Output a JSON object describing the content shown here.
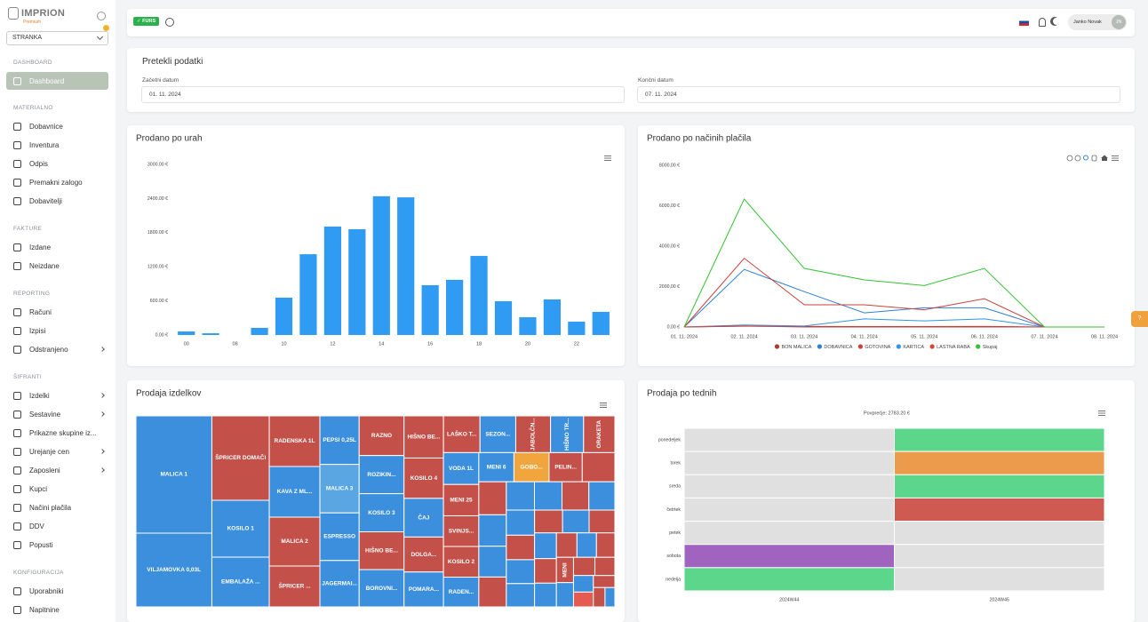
{
  "sidebar": {
    "brand": "IMPRION",
    "brand_tier": "Premium",
    "select": "STRANKA",
    "sections": [
      {
        "title": "DASHBOARD",
        "items": [
          {
            "label": "Dashboard",
            "active": true
          }
        ]
      },
      {
        "title": "MATERIALNO",
        "items": [
          {
            "label": "Dobavnice"
          },
          {
            "label": "Inventura"
          },
          {
            "label": "Odpis"
          },
          {
            "label": "Premakni zalogo"
          },
          {
            "label": "Dobavitelji"
          }
        ]
      },
      {
        "title": "FAKTURE",
        "items": [
          {
            "label": "Izdane"
          },
          {
            "label": "Neizdane"
          }
        ]
      },
      {
        "title": "REPORTING",
        "items": [
          {
            "label": "Računi"
          },
          {
            "label": "Izpisi"
          },
          {
            "label": "Odstranjeno",
            "expandable": true
          }
        ]
      },
      {
        "title": "ŠIFRANTI",
        "items": [
          {
            "label": "Izdelki",
            "expandable": true
          },
          {
            "label": "Sestavine",
            "expandable": true
          },
          {
            "label": "Prikazne skupine iz..."
          },
          {
            "label": "Urejanje cen",
            "expandable": true
          },
          {
            "label": "Zaposleni",
            "expandable": true
          },
          {
            "label": "Kupci"
          },
          {
            "label": "Načini plačila"
          },
          {
            "label": "DDV"
          },
          {
            "label": "Popusti"
          }
        ]
      },
      {
        "title": "KONFIGURACIJA",
        "items": [
          {
            "label": "Uporabniki"
          },
          {
            "label": "Napitnine"
          }
        ]
      }
    ]
  },
  "topbar": {
    "badge": "FURS",
    "user": "Janko Novak",
    "initials": "JN"
  },
  "help": "?",
  "filter": {
    "title": "Pretekli podatki",
    "fields": [
      {
        "label": "Začetni datum",
        "value": "01. 11. 2024"
      },
      {
        "label": "Končni datum",
        "value": "07. 11. 2024"
      }
    ]
  },
  "chart_data": [
    {
      "type": "bar",
      "title": "Prodano po urah",
      "color": "#2f9bf2",
      "grid": false,
      "categories": [
        "00",
        null,
        "08",
        null,
        "10",
        null,
        "12",
        null,
        "14",
        null,
        "16",
        null,
        "18",
        null,
        "20",
        null,
        "22",
        null
      ],
      "values": [
        62,
        30,
        0,
        125,
        656,
        1420,
        1906,
        1860,
        2440,
        2420,
        875,
        970,
        1390,
        594,
        312,
        625,
        234,
        406
      ],
      "ylim": [
        0,
        3000
      ],
      "yticks": [
        {
          "value": 0,
          "label": "0.00 €"
        },
        {
          "value": 600,
          "label": "600.00 €"
        },
        {
          "value": 1200,
          "label": "1200.00 €"
        },
        {
          "value": 1800,
          "label": "1800.00 €"
        },
        {
          "value": 2400,
          "label": "2400.00 €"
        },
        {
          "value": 3000,
          "label": "3000.00 €"
        }
      ]
    },
    {
      "type": "line",
      "title": "Prodano po načinih plačila",
      "grid": false,
      "categories": [
        "01. 11. 2024",
        "02. 11. 2024",
        "03. 11. 2024",
        "04. 11. 2024",
        "05. 11. 2024",
        "06. 11. 2024",
        "07. 11. 2024",
        "08. 11. 2024"
      ],
      "ylim": [
        0,
        8000
      ],
      "yticks": [
        {
          "value": 0,
          "label": "0,00 €"
        },
        {
          "value": 2000,
          "label": "2000,00 €"
        },
        {
          "value": 4000,
          "label": "4000,00 €"
        },
        {
          "value": 6000,
          "label": "6000,00 €"
        },
        {
          "value": 8000,
          "label": "8000,00 €"
        }
      ],
      "series": [
        {
          "name": "BON MALICA",
          "color": "#b5382d",
          "values": [
            0,
            40,
            30,
            20,
            20,
            30,
            0,
            0
          ]
        },
        {
          "name": "DOBAVNICA",
          "color": "#2e7fd6",
          "values": [
            0,
            2850,
            1750,
            700,
            950,
            950,
            0,
            0
          ]
        },
        {
          "name": "GOTOVINA",
          "color": "#c9413a",
          "values": [
            0,
            3400,
            1100,
            1100,
            850,
            1400,
            0,
            0
          ]
        },
        {
          "name": "KARTICA",
          "color": "#2f95ea",
          "values": [
            0,
            100,
            50,
            400,
            300,
            400,
            0,
            0
          ]
        },
        {
          "name": "LASTNA RABA",
          "color": "#d4463c",
          "values": [
            0,
            50,
            0,
            0,
            0,
            0,
            0,
            0
          ]
        },
        {
          "name": "Skupaj",
          "color": "#33c233",
          "values": [
            0,
            6330,
            2900,
            2330,
            2050,
            2900,
            0,
            0
          ]
        }
      ]
    },
    {
      "type": "treemap",
      "title": "Prodaja izdelkov",
      "items": [
        {
          "label": "MALICA 1",
          "value": 10296,
          "color": "#3b8fdc"
        },
        {
          "label": "VILJAMOVKA 0,03L",
          "value": 6474,
          "color": "#3b8fdc"
        },
        {
          "label": "ŠPRICER DOMAČI",
          "value": 5605,
          "color": "#c4504a"
        },
        {
          "label": "KOSILO 1",
          "value": 3776,
          "color": "#3b8fdc"
        },
        {
          "label": "EMBALAŽA ...",
          "value": 3304,
          "color": "#3b8fdc"
        },
        {
          "label": "RADENSKA 1L",
          "value": 2964,
          "color": "#c4504a"
        },
        {
          "label": "KAVA Z ML...",
          "value": 2964,
          "color": "#3b8fdc"
        },
        {
          "label": "MALICA 2",
          "value": 2860,
          "color": "#c4504a"
        },
        {
          "label": "ŠPRICER ...",
          "value": 2392,
          "color": "#c4504a"
        },
        {
          "label": "PEPSI 0,25L",
          "value": 2205,
          "color": "#3b8fdc"
        },
        {
          "label": "MALICA 3",
          "value": 2205,
          "color": "#5aa6e3"
        },
        {
          "label": "ESPRESSO",
          "value": 2162,
          "color": "#3b8fdc"
        },
        {
          "label": "JAGERMAI...",
          "value": 2107,
          "color": "#3b8fdc"
        },
        {
          "label": "RAZNO",
          "value": 2058,
          "color": "#c4504a"
        },
        {
          "label": "ROZIKIN...",
          "value": 1978,
          "color": "#3b8fdc"
        },
        {
          "label": "KOSILO 3",
          "value": 1978,
          "color": "#3b8fdc"
        },
        {
          "label": "HIŠNO BE...",
          "value": 1960,
          "color": "#c4504a"
        },
        {
          "label": "BOROVNI...",
          "value": 1932,
          "color": "#3b8fdc"
        },
        {
          "label": "HIŠNO BE...",
          "value": 1924,
          "color": "#c4504a"
        },
        {
          "label": "KOSILO 4",
          "value": 1840,
          "color": "#c4504a"
        },
        {
          "label": "ČAJ",
          "value": 1764,
          "color": "#3b8fdc"
        },
        {
          "label": "DOLGA...",
          "value": 1596,
          "color": "#c4504a"
        },
        {
          "label": "POMARA...",
          "value": 1591,
          "color": "#3b8fdc"
        },
        {
          "label": "LAŠKO T...",
          "value": 1554,
          "color": "#c4504a"
        },
        {
          "label": "SEZON...",
          "value": 1520,
          "color": "#3b8fdc"
        },
        {
          "label": "JABOLČN...",
          "value": 1480,
          "color": "#c4504a"
        },
        {
          "label": "HIŠNO TR...",
          "value": 1406,
          "color": "#3b8fdc"
        },
        {
          "label": "ORAKETA",
          "value": 1330,
          "color": "#c4504a"
        },
        {
          "label": "VODA 1L",
          "value": 1302,
          "color": "#3b8fdc"
        },
        {
          "label": "MENI 25",
          "value": 1280,
          "color": "#c4504a"
        },
        {
          "label": "SVINJS...",
          "value": 1254,
          "color": "#c4504a"
        },
        {
          "label": "KOSILO 2",
          "value": 1254,
          "color": "#c4504a"
        },
        {
          "label": "RADEN...",
          "value": 1216,
          "color": "#3b8fdc"
        },
        {
          "label": "MENI 6",
          "value": 1184,
          "color": "#3b8fdc"
        },
        {
          "label": "GOBO...",
          "value": 1184,
          "color": "#f0a63c"
        },
        {
          "label": "PELIN...",
          "value": 1120,
          "color": "#c4504a"
        },
        {
          "label": null,
          "value": 1100,
          "color": "#c4504a"
        },
        {
          "label": null,
          "value": 1050,
          "color": "#c4504a"
        },
        {
          "label": null,
          "value": 1000,
          "color": "#3b8fdc"
        },
        {
          "label": null,
          "value": 980,
          "color": "#3b8fdc"
        },
        {
          "label": null,
          "value": 950,
          "color": "#c4504a"
        },
        {
          "label": null,
          "value": 920,
          "color": "#3b8fdc"
        },
        {
          "label": null,
          "value": 900,
          "color": "#3b8fdc"
        },
        {
          "label": null,
          "value": 880,
          "color": "#c4504a"
        },
        {
          "label": null,
          "value": 850,
          "color": "#3b8fdc"
        },
        {
          "label": null,
          "value": 820,
          "color": "#3b8fdc"
        },
        {
          "label": null,
          "value": 800,
          "color": "#c4504a"
        },
        {
          "label": null,
          "value": 780,
          "color": "#3b8fdc"
        },
        {
          "label": null,
          "value": 760,
          "color": "#3b8fdc"
        },
        {
          "label": null,
          "value": 740,
          "color": "#c4504a"
        },
        {
          "label": null,
          "value": 700,
          "color": "#3b8fdc"
        },
        {
          "label": null,
          "value": 680,
          "color": "#c4504a"
        },
        {
          "label": null,
          "value": 650,
          "color": "#3b8fdc"
        },
        {
          "label": null,
          "value": 620,
          "color": "#c4504a"
        },
        {
          "label": null,
          "value": 600,
          "color": "#3b8fdc"
        },
        {
          "label": null,
          "value": 580,
          "color": "#c4504a"
        },
        {
          "label": null,
          "value": 550,
          "color": "#3b8fdc"
        },
        {
          "label": null,
          "value": 520,
          "color": "#c4504a"
        },
        {
          "label": "MENI",
          "value": 500,
          "color": "#c4504a"
        },
        {
          "label": null,
          "value": 480,
          "color": "#3b8fdc"
        },
        {
          "label": null,
          "value": 450,
          "color": "#c4504a"
        },
        {
          "label": null,
          "value": 420,
          "color": "#c4504a"
        },
        {
          "label": null,
          "value": 380,
          "color": "#3b8fdc"
        },
        {
          "label": null,
          "value": 340,
          "color": "#e55b50"
        },
        {
          "label": null,
          "value": 300,
          "color": "#c4504a"
        },
        {
          "label": null,
          "value": 260,
          "color": "#c4504a"
        },
        {
          "label": null,
          "value": 220,
          "color": "#3b8fdc"
        }
      ]
    },
    {
      "type": "heatmap",
      "title": "Prodaja po tednih",
      "subtitle": "Povprečje: 2783.20 €",
      "categories": [
        "2024W44",
        "2024W45"
      ],
      "series": [
        {
          "name": "ponedeljek",
          "values": [
            0,
            3700
          ],
          "colors": [
            "#e0e0e0",
            "#5cd68b"
          ]
        },
        {
          "name": "torek",
          "values": [
            0,
            2500
          ],
          "colors": [
            "#e0e0e0",
            "#ec9a4c"
          ]
        },
        {
          "name": "sreda",
          "values": [
            0,
            3500
          ],
          "colors": [
            "#e0e0e0",
            "#5cd68b"
          ]
        },
        {
          "name": "četrtek",
          "values": [
            0,
            1900
          ],
          "colors": [
            "#e0e0e0",
            "#cf5a51"
          ]
        },
        {
          "name": "petek",
          "values": [
            0,
            0
          ],
          "colors": [
            "#e0e0e0",
            "#e0e0e0"
          ]
        },
        {
          "name": "sobota",
          "values": [
            1300,
            0
          ],
          "colors": [
            "#a064c0",
            "#e0e0e0"
          ]
        },
        {
          "name": "nedelja",
          "values": [
            3800,
            0
          ],
          "colors": [
            "#5cd68b",
            "#e0e0e0"
          ]
        }
      ]
    }
  ]
}
